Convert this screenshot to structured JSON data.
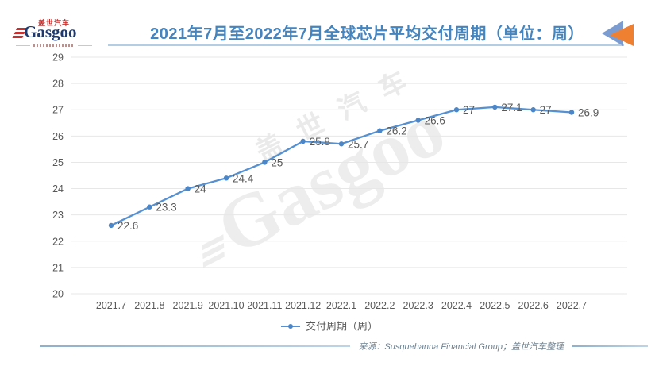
{
  "logo": {
    "cn": "盖世汽车",
    "en": "Gasgoo"
  },
  "watermark": {
    "cn": "盖世汽车",
    "en": "Gasgoo"
  },
  "chart_data": {
    "type": "line",
    "title": "2021年7月至2022年7月全球芯片平均交付周期（单位：周）",
    "categories": [
      "2021.7",
      "2021.8",
      "2021.9",
      "2021.10",
      "2021.11",
      "2021.12",
      "2022.1",
      "2022.2",
      "2022.3",
      "2022.4",
      "2022.5",
      "2022.6",
      "2022.7"
    ],
    "series": [
      {
        "name": "交付周期（周）",
        "values": [
          22.6,
          23.3,
          24,
          24.4,
          25,
          25.8,
          25.7,
          26.2,
          26.6,
          27,
          27.1,
          27,
          26.9
        ]
      }
    ],
    "xlabel": "",
    "ylabel": "",
    "ylim": [
      20,
      29
    ],
    "y_ticks": [
      20,
      21,
      22,
      23,
      24,
      25,
      26,
      27,
      28,
      29
    ],
    "grid": true,
    "legend_position": "bottom",
    "data_labels": true
  },
  "footer": {
    "source": "来源：Susquehanna Financial Group；盖世汽车整理"
  },
  "colors": {
    "title": "#4484bf",
    "title_underline": "#b3cde4",
    "line": "#5591d2",
    "marker": "#4a86c8",
    "grid": "#e7e7e7",
    "axis_text": "#595959",
    "data_label": "#595959",
    "legend_text": "#595959",
    "arrow_blue": "#7a9cd0",
    "arrow_orange": "#ef8032",
    "logo_red": "#c4312f",
    "logo_navy": "#1e3a6e",
    "footer_text": "#6d8191"
  }
}
